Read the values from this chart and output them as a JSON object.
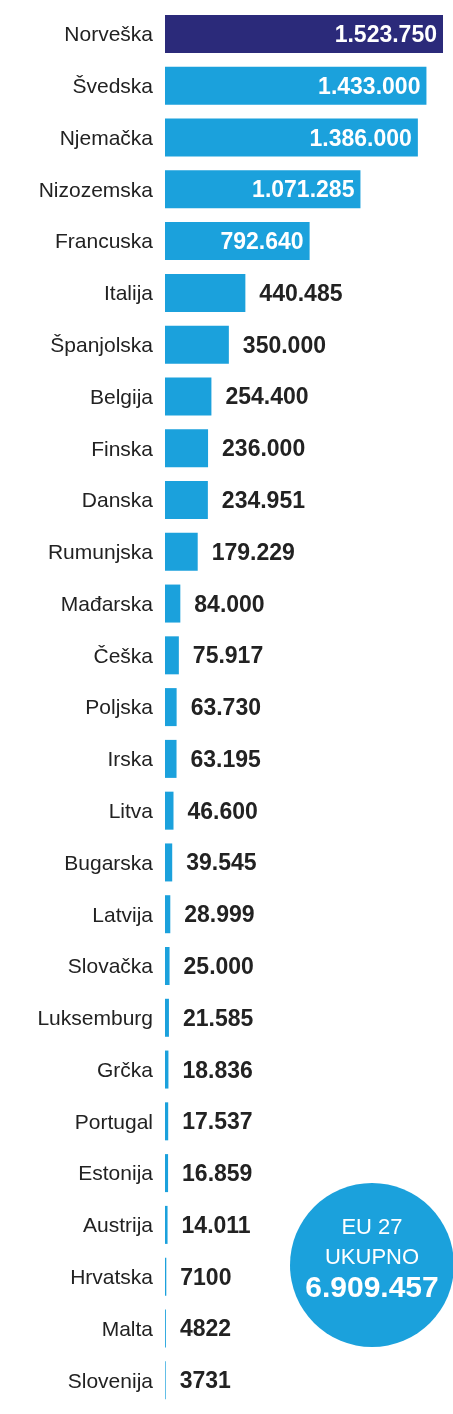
{
  "chart_data": {
    "type": "bar",
    "orientation": "horizontal",
    "categories": [
      "Norveška",
      "Švedska",
      "Njemačka",
      "Nizozemska",
      "Francuska",
      "Italija",
      "Španjolska",
      "Belgija",
      "Finska",
      "Danska",
      "Rumunjska",
      "Mađarska",
      "Češka",
      "Poljska",
      "Irska",
      "Litva",
      "Bugarska",
      "Latvija",
      "Slovačka",
      "Luksemburg",
      "Grčka",
      "Portugal",
      "Estonija",
      "Austrija",
      "Hrvatska",
      "Malta",
      "Slovenija"
    ],
    "values": [
      1523750,
      1433000,
      1386000,
      1071285,
      792640,
      440485,
      350000,
      254400,
      236000,
      234951,
      179229,
      84000,
      75917,
      63730,
      63195,
      46600,
      39545,
      28999,
      25000,
      21585,
      18836,
      17537,
      16859,
      14011,
      7100,
      4822,
      3731
    ],
    "value_labels": [
      "1.523.750",
      "1.433.000",
      "1.386.000",
      "1.071.285",
      "792.640",
      "440.485",
      "350.000",
      "254.400",
      "236.000",
      "234.951",
      "179.229",
      "84.000",
      "75.917",
      "63.730",
      "63.195",
      "46.600",
      "39.545",
      "28.999",
      "25.000",
      "21.585",
      "18.836",
      "17.537",
      "16.859",
      "14.011",
      "7100",
      "4822",
      "3731"
    ],
    "colors": [
      "#2b2a7a",
      "#1ba1dc",
      "#1ba1dc",
      "#1ba1dc",
      "#1ba1dc",
      "#1ba1dc",
      "#1ba1dc",
      "#1ba1dc",
      "#1ba1dc",
      "#1ba1dc",
      "#1ba1dc",
      "#1ba1dc",
      "#1ba1dc",
      "#1ba1dc",
      "#1ba1dc",
      "#1ba1dc",
      "#1ba1dc",
      "#1ba1dc",
      "#1ba1dc",
      "#1ba1dc",
      "#1ba1dc",
      "#1ba1dc",
      "#1ba1dc",
      "#1ba1dc",
      "#1ba1dc",
      "#1ba1dc",
      "#1ba1dc"
    ],
    "annotations": [
      "EU 27",
      "UKUPNO",
      "6.909.457"
    ],
    "grid": false,
    "legend": false
  }
}
